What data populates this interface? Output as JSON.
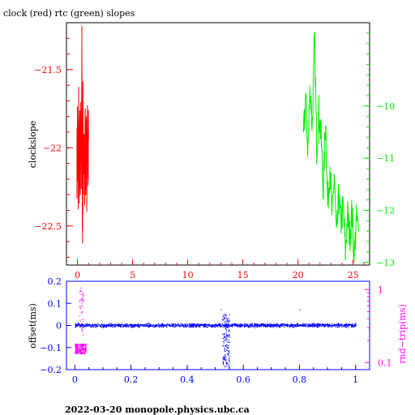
{
  "figure_title": "clock (red) rtc (green) slopes",
  "footer": "2022-03-20  monopole.physics.ubc.ca",
  "colors": {
    "clock": "#ff0000",
    "rtc": "#00ee00",
    "offset": "#0000ff",
    "rndtrip": "#ff00ff",
    "axis": "#000000"
  },
  "chart_data": [
    {
      "type": "line",
      "title": "clock (red) rtc (green) slopes",
      "ylabel": "clockslope",
      "y2label": "",
      "xlim": [
        -1,
        26.5
      ],
      "ylim": [
        -22.75,
        -21.2
      ],
      "y2lim": [
        -13.05,
        -8.4
      ],
      "x_ticks": [
        0,
        5,
        10,
        15,
        20,
        25
      ],
      "y_ticks": [
        -21.5,
        -22,
        -22.5
      ],
      "y2_ticks": [
        -10,
        -11,
        -12,
        -13
      ],
      "x_ticklabels": [
        "0",
        "5",
        "10",
        "15",
        "20",
        "25"
      ],
      "y_ticklabels": [
        "−21.5",
        "−22",
        "−22.5"
      ],
      "y2_ticklabels": [
        "−10",
        "−11",
        "−12",
        "−13"
      ],
      "grid": false,
      "series": [
        {
          "name": "clock",
          "axis": "left",
          "color": "#ff0000",
          "x": [
            -0.05,
            0.0,
            0.05,
            0.1,
            0.15,
            0.2,
            0.25,
            0.3,
            0.35,
            0.4,
            0.45,
            0.5,
            0.55,
            0.6,
            0.65,
            0.7,
            0.75,
            0.8,
            0.85,
            0.9,
            0.95,
            1.0
          ],
          "y": [
            -22.1,
            -21.85,
            -22.25,
            -21.8,
            -22.3,
            -21.9,
            -22.15,
            -21.75,
            -22.2,
            -21.3,
            -22.65,
            -21.8,
            -22.25,
            -21.85,
            -22.3,
            -21.9,
            -22.2,
            -21.85,
            -22.25,
            -21.9,
            -22.2,
            -21.95
          ]
        },
        {
          "name": "rtc",
          "axis": "right",
          "color": "#00ee00",
          "x": [
            20.5,
            20.7,
            20.9,
            21.1,
            21.3,
            21.5,
            21.7,
            21.9,
            22.1,
            22.3,
            22.5,
            22.7,
            22.9,
            23.1,
            23.3,
            23.5,
            23.7,
            23.9,
            24.1,
            24.3,
            24.5,
            24.7,
            24.9,
            25.1,
            25.3,
            25.5
          ],
          "y": [
            -10.6,
            -9.8,
            -10.9,
            -9.6,
            -10.4,
            -8.7,
            -10.8,
            -10.1,
            -10.6,
            -11.6,
            -10.2,
            -11.9,
            -11.1,
            -12.2,
            -11.3,
            -12.6,
            -11.7,
            -12.3,
            -11.9,
            -12.8,
            -12.1,
            -12.5,
            -12.0,
            -12.9,
            -12.2,
            -12.4
          ]
        }
      ]
    },
    {
      "type": "scatter",
      "ylabel": "offset(ms)",
      "y2label": "rnd−trip(ms)",
      "xlim": [
        -0.03,
        1.05
      ],
      "ylim": [
        -0.2,
        0.2
      ],
      "y2lim": [
        0.08,
        1.3
      ],
      "y2_scale": "log",
      "x_ticks": [
        0,
        0.2,
        0.4,
        0.6,
        0.8,
        1
      ],
      "y_ticks": [
        0.2,
        0.1,
        0,
        -0.1,
        -0.2
      ],
      "y2_ticks": [
        1,
        0.1
      ],
      "x_ticklabels": [
        "0",
        "0.2",
        "0.4",
        "0.6",
        "0.8",
        "1"
      ],
      "y_ticklabels": [
        "0.2",
        "0.1",
        "0",
        "−0.1",
        "−0.2"
      ],
      "y2_ticklabels": [
        "1",
        "0.1"
      ],
      "grid": false,
      "series": [
        {
          "name": "offset",
          "axis": "left",
          "color": "#0000ff",
          "x_range": [
            0.0,
            1.0
          ],
          "y_center": 0.0,
          "y_spread": 0.012,
          "outliers": [
            [
              0.53,
              0.05
            ],
            [
              0.53,
              -0.15
            ],
            [
              0.54,
              -0.17
            ],
            [
              0.55,
              0.02
            ],
            [
              0.52,
              0.07
            ],
            [
              0.8,
              0.07
            ]
          ]
        },
        {
          "name": "rnd-trip",
          "axis": "right",
          "color": "#ff00ff",
          "x_range": [
            0.0,
            0.04
          ],
          "y_band": [
            0.13,
            0.18
          ],
          "outliers": [
            [
              0.02,
              1.05
            ],
            [
              0.02,
              0.55
            ],
            [
              0.025,
              0.3
            ]
          ]
        }
      ]
    }
  ]
}
